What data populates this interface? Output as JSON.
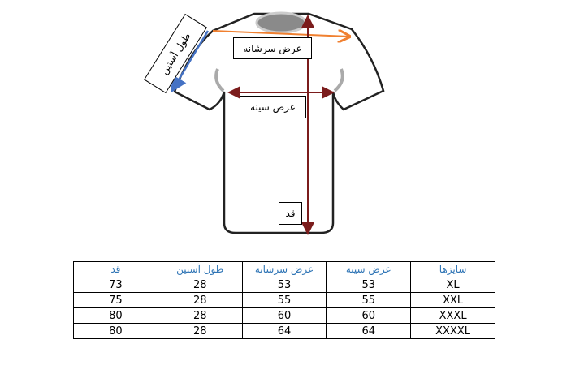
{
  "labels": {
    "shoulder": "عرض سرشانه",
    "chest": "عرض سینه",
    "height": "قد",
    "sleeve": "طول آستین"
  },
  "colors": {
    "shoulder_arrow": "#f08030",
    "sleeve_arrow": "#4472c4",
    "measure_arrow": "#7b1c1c",
    "header_text": "#2e74b5"
  },
  "table": {
    "headers": [
      "سایزها",
      "عرض سینه",
      "عرض سرشانه",
      "طول آستین",
      "قد"
    ],
    "rows": [
      [
        "XL",
        "53",
        "53",
        "28",
        "73"
      ],
      [
        "XXL",
        "55",
        "55",
        "28",
        "75"
      ],
      [
        "XXXL",
        "60",
        "60",
        "28",
        "80"
      ],
      [
        "XXXXL",
        "64",
        "64",
        "28",
        "80"
      ]
    ]
  }
}
